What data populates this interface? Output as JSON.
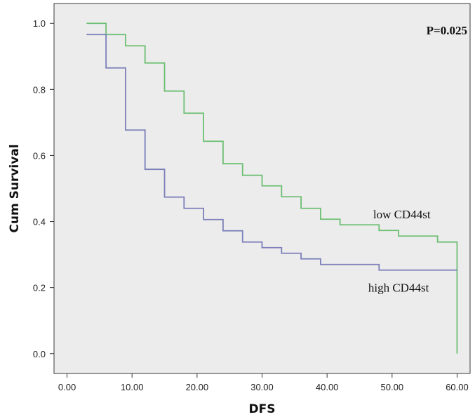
{
  "chart_data": {
    "type": "line",
    "step": true,
    "title": "",
    "xlabel": "DFS",
    "ylabel": "Cum Survival",
    "xlim": [
      -2,
      62
    ],
    "ylim": [
      -0.06,
      1.06
    ],
    "x_ticks": [
      0,
      10,
      20,
      30,
      40,
      50,
      60
    ],
    "x_tick_labels": [
      "0.00",
      "10.00",
      "20.00",
      "30.00",
      "40.00",
      "50.00",
      "60.00"
    ],
    "y_ticks": [
      0.0,
      0.2,
      0.4,
      0.6,
      0.8,
      1.0
    ],
    "y_tick_labels": [
      "0.0",
      "0.2",
      "0.4",
      "0.6",
      "0.8",
      "1.0"
    ],
    "grid": false,
    "background": "#ececec",
    "annotation": "P=0.025",
    "series": [
      {
        "name": "low CD44st",
        "color": "#6dbf73",
        "points": [
          [
            3,
            1.0
          ],
          [
            6,
            0.966
          ],
          [
            9,
            0.932
          ],
          [
            12,
            0.88
          ],
          [
            15,
            0.795
          ],
          [
            18,
            0.728
          ],
          [
            21,
            0.643
          ],
          [
            24,
            0.575
          ],
          [
            27,
            0.54
          ],
          [
            30,
            0.508
          ],
          [
            33,
            0.475
          ],
          [
            36,
            0.44
          ],
          [
            39,
            0.407
          ],
          [
            42,
            0.39
          ],
          [
            48,
            0.373
          ],
          [
            51,
            0.356
          ],
          [
            57,
            0.338
          ],
          [
            60,
            0.0
          ]
        ]
      },
      {
        "name": "high CD44st",
        "color": "#7b80b8",
        "points": [
          [
            3,
            0.966
          ],
          [
            6,
            0.865
          ],
          [
            9,
            0.677
          ],
          [
            12,
            0.558
          ],
          [
            15,
            0.474
          ],
          [
            18,
            0.44
          ],
          [
            21,
            0.406
          ],
          [
            24,
            0.372
          ],
          [
            27,
            0.338
          ],
          [
            30,
            0.321
          ],
          [
            33,
            0.304
          ],
          [
            36,
            0.287
          ],
          [
            39,
            0.27
          ],
          [
            48,
            0.253
          ],
          [
            60,
            0.253
          ]
        ]
      }
    ]
  }
}
